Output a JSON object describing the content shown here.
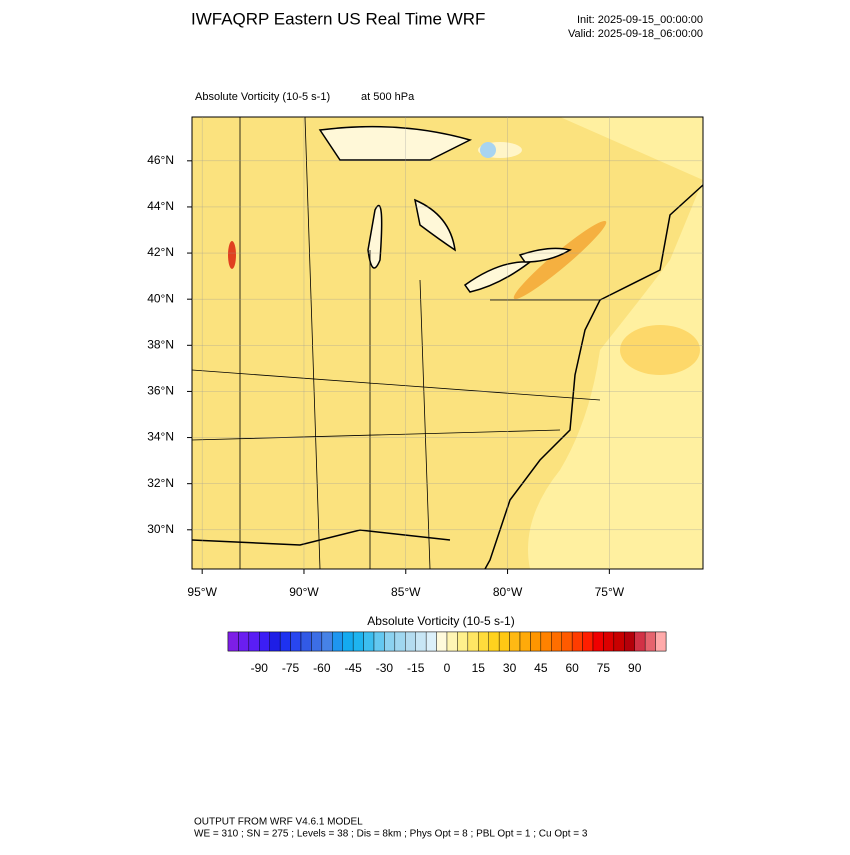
{
  "header": {
    "title": "IWFAQRP Eastern US Real Time WRF",
    "init": "Init: 2025-09-15_00:00:00",
    "valid": "Valid: 2025-09-18_06:00:00"
  },
  "map": {
    "field": "Absolute Vorticity   (10-5 s-1)",
    "level": "at   500 hPa",
    "xlim": [
      -95.5,
      -70.4
    ],
    "ylim": [
      28.3,
      47.9
    ],
    "xticks": [
      {
        "value": -95,
        "label": "95°W"
      },
      {
        "value": -90,
        "label": "90°W"
      },
      {
        "value": -85,
        "label": "85°W"
      },
      {
        "value": -80,
        "label": "80°W"
      },
      {
        "value": -75,
        "label": "75°W"
      }
    ],
    "yticks": [
      {
        "value": 30,
        "label": "30°N"
      },
      {
        "value": 32,
        "label": "32°N"
      },
      {
        "value": 34,
        "label": "34°N"
      },
      {
        "value": 36,
        "label": "36°N"
      },
      {
        "value": 38,
        "label": "38°N"
      },
      {
        "value": 40,
        "label": "40°N"
      },
      {
        "value": 42,
        "label": "42°N"
      },
      {
        "value": 44,
        "label": "44°N"
      },
      {
        "value": 46,
        "label": "46°N"
      }
    ]
  },
  "colorbar": {
    "title": "Absolute Vorticity  (10-5 s-1)",
    "range": [
      -105,
      105
    ],
    "labels": [
      -90,
      -75,
      -60,
      -45,
      -30,
      -15,
      0,
      15,
      30,
      45,
      60,
      75,
      90
    ],
    "colors": [
      "#7d1ee6",
      "#6a1ef0",
      "#5a1ef5",
      "#3c1ef5",
      "#1e1ee6",
      "#1e32f0",
      "#2846f0",
      "#325ae6",
      "#3c6ee6",
      "#4682e6",
      "#1e96f0",
      "#14aaf0",
      "#1eb4f0",
      "#3cbef0",
      "#64c8f0",
      "#8cd2f0",
      "#a0d7f0",
      "#b4dcf0",
      "#c8e6f5",
      "#dcf0fa",
      "#fffadc",
      "#fff5b4",
      "#fff08c",
      "#ffe664",
      "#ffdc3c",
      "#ffd21e",
      "#ffc814",
      "#ffb914",
      "#ffaa0a",
      "#ff9600",
      "#ff8200",
      "#ff6e00",
      "#ff5a00",
      "#ff3c00",
      "#ff1e00",
      "#f00000",
      "#dc0000",
      "#c80000",
      "#b4000a",
      "#d23246",
      "#e6646e",
      "#ffaaaa"
    ]
  },
  "footer": {
    "line1": "OUTPUT FROM WRF V4.6.1 MODEL",
    "line2": "WE = 310 ; SN = 275 ; Levels = 38 ; Dis = 8km ; Phys Opt = 8 ; PBL Opt = 1 ; Cu Opt = 3"
  }
}
